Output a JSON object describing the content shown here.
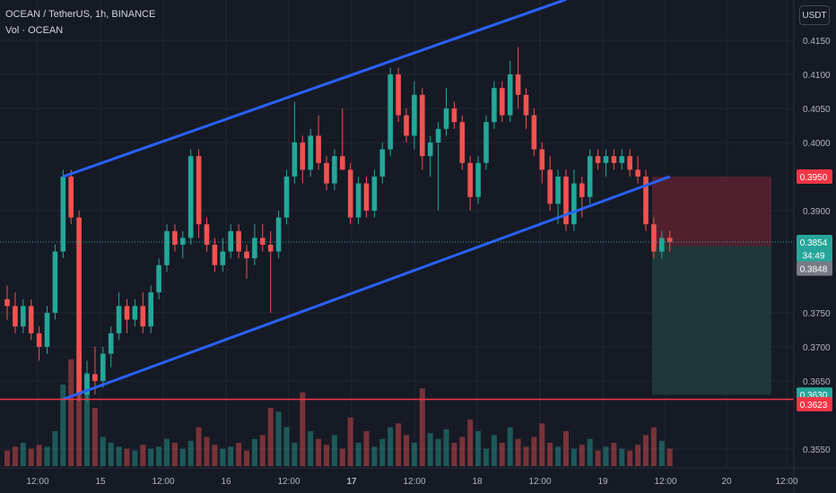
{
  "header": {
    "title": "OCEAN / TetherUS, 1h, BINANCE",
    "volume_label": "Vol · OCEAN"
  },
  "currency_button": "USDT",
  "colors": {
    "background": "#161a25",
    "up": "#26a69a",
    "down": "#ef5350",
    "channel": "#2962ff",
    "support": "#f23645",
    "stop_zone": "#5b2231",
    "target_zone": "#1e3c3b"
  },
  "chart_data": {
    "type": "candlestick",
    "title": "OCEAN / TetherUS, 1h, BINANCE",
    "y_ticks": [
      0.415,
      0.41,
      0.405,
      0.4,
      0.39,
      0.375,
      0.37,
      0.365,
      0.355
    ],
    "x_ticks": [
      "12:00",
      "15",
      "12:00",
      "16",
      "12:00",
      "17",
      "12:00",
      "18",
      "12:00",
      "19",
      "12:00",
      "20",
      "12:00"
    ],
    "price_labels": [
      {
        "value": "0.3950",
        "type": "stop"
      },
      {
        "value": "0.3854",
        "type": "last"
      },
      {
        "value": "34:49",
        "type": "countdown"
      },
      {
        "value": "0.3848",
        "type": "entry"
      },
      {
        "value": "0.3630",
        "type": "target"
      },
      {
        "value": "0.3623",
        "type": "support"
      }
    ],
    "support_level": 0.3623,
    "position": {
      "entry": 0.3848,
      "stop": 0.395,
      "target": 0.363
    },
    "channel": {
      "upper": [
        {
          "t": 7,
          "p": 0.395
        },
        {
          "t": 70,
          "p": 0.421
        }
      ],
      "lower": [
        {
          "t": 7,
          "p": 0.3623
        },
        {
          "t": 83,
          "p": 0.395
        }
      ]
    },
    "candles_ohlc": [
      [
        0.377,
        0.379,
        0.374,
        0.376
      ],
      [
        0.376,
        0.378,
        0.372,
        0.373
      ],
      [
        0.373,
        0.377,
        0.372,
        0.376
      ],
      [
        0.376,
        0.377,
        0.371,
        0.372
      ],
      [
        0.372,
        0.373,
        0.368,
        0.37
      ],
      [
        0.37,
        0.376,
        0.369,
        0.375
      ],
      [
        0.375,
        0.385,
        0.374,
        0.384
      ],
      [
        0.384,
        0.396,
        0.383,
        0.395
      ],
      [
        0.395,
        0.396,
        0.388,
        0.389
      ],
      [
        0.389,
        0.39,
        0.362,
        0.363
      ],
      [
        0.363,
        0.368,
        0.362,
        0.366
      ],
      [
        0.366,
        0.37,
        0.363,
        0.365
      ],
      [
        0.365,
        0.37,
        0.364,
        0.369
      ],
      [
        0.369,
        0.373,
        0.367,
        0.372
      ],
      [
        0.372,
        0.378,
        0.371,
        0.376
      ],
      [
        0.376,
        0.377,
        0.372,
        0.374
      ],
      [
        0.374,
        0.377,
        0.373,
        0.376
      ],
      [
        0.376,
        0.378,
        0.372,
        0.373
      ],
      [
        0.373,
        0.379,
        0.372,
        0.378
      ],
      [
        0.378,
        0.383,
        0.377,
        0.382
      ],
      [
        0.382,
        0.388,
        0.381,
        0.387
      ],
      [
        0.387,
        0.388,
        0.384,
        0.385
      ],
      [
        0.385,
        0.387,
        0.383,
        0.386
      ],
      [
        0.386,
        0.399,
        0.385,
        0.398
      ],
      [
        0.398,
        0.399,
        0.386,
        0.388
      ],
      [
        0.388,
        0.389,
        0.384,
        0.385
      ],
      [
        0.385,
        0.386,
        0.381,
        0.382
      ],
      [
        0.382,
        0.386,
        0.381,
        0.384
      ],
      [
        0.384,
        0.388,
        0.383,
        0.387
      ],
      [
        0.387,
        0.388,
        0.383,
        0.384
      ],
      [
        0.384,
        0.385,
        0.38,
        0.383
      ],
      [
        0.383,
        0.388,
        0.382,
        0.386
      ],
      [
        0.386,
        0.388,
        0.384,
        0.385
      ],
      [
        0.385,
        0.387,
        0.375,
        0.384
      ],
      [
        0.384,
        0.39,
        0.383,
        0.389
      ],
      [
        0.389,
        0.396,
        0.388,
        0.395
      ],
      [
        0.395,
        0.406,
        0.394,
        0.4
      ],
      [
        0.4,
        0.401,
        0.394,
        0.396
      ],
      [
        0.396,
        0.402,
        0.395,
        0.401
      ],
      [
        0.401,
        0.404,
        0.396,
        0.397
      ],
      [
        0.397,
        0.398,
        0.393,
        0.394
      ],
      [
        0.394,
        0.399,
        0.393,
        0.398
      ],
      [
        0.398,
        0.405,
        0.396,
        0.396
      ],
      [
        0.396,
        0.397,
        0.388,
        0.389
      ],
      [
        0.389,
        0.395,
        0.388,
        0.394
      ],
      [
        0.394,
        0.395,
        0.389,
        0.39
      ],
      [
        0.39,
        0.396,
        0.389,
        0.395
      ],
      [
        0.395,
        0.4,
        0.394,
        0.399
      ],
      [
        0.399,
        0.411,
        0.398,
        0.41
      ],
      [
        0.41,
        0.411,
        0.403,
        0.404
      ],
      [
        0.404,
        0.405,
        0.4,
        0.401
      ],
      [
        0.401,
        0.409,
        0.399,
        0.407
      ],
      [
        0.407,
        0.408,
        0.396,
        0.398
      ],
      [
        0.398,
        0.401,
        0.395,
        0.4
      ],
      [
        0.4,
        0.403,
        0.39,
        0.402
      ],
      [
        0.402,
        0.408,
        0.401,
        0.405
      ],
      [
        0.405,
        0.406,
        0.402,
        0.403
      ],
      [
        0.403,
        0.404,
        0.396,
        0.397
      ],
      [
        0.397,
        0.398,
        0.39,
        0.392
      ],
      [
        0.392,
        0.398,
        0.391,
        0.397
      ],
      [
        0.397,
        0.404,
        0.396,
        0.403
      ],
      [
        0.403,
        0.409,
        0.402,
        0.408
      ],
      [
        0.408,
        0.409,
        0.403,
        0.404
      ],
      [
        0.404,
        0.412,
        0.403,
        0.41
      ],
      [
        0.41,
        0.414,
        0.405,
        0.407
      ],
      [
        0.407,
        0.408,
        0.402,
        0.404
      ],
      [
        0.404,
        0.405,
        0.398,
        0.399
      ],
      [
        0.399,
        0.4,
        0.394,
        0.396
      ],
      [
        0.396,
        0.398,
        0.39,
        0.391
      ],
      [
        0.391,
        0.396,
        0.388,
        0.395
      ],
      [
        0.395,
        0.396,
        0.387,
        0.388
      ],
      [
        0.388,
        0.396,
        0.387,
        0.394
      ],
      [
        0.394,
        0.395,
        0.389,
        0.392
      ],
      [
        0.392,
        0.399,
        0.391,
        0.398
      ],
      [
        0.398,
        0.399,
        0.396,
        0.397
      ],
      [
        0.397,
        0.399,
        0.395,
        0.398
      ],
      [
        0.398,
        0.399,
        0.396,
        0.397
      ],
      [
        0.397,
        0.399,
        0.396,
        0.398
      ],
      [
        0.398,
        0.399,
        0.395,
        0.396
      ],
      [
        0.396,
        0.398,
        0.394,
        0.395
      ],
      [
        0.395,
        0.396,
        0.387,
        0.388
      ],
      [
        0.388,
        0.389,
        0.383,
        0.384
      ],
      [
        0.384,
        0.387,
        0.383,
        0.386
      ],
      [
        0.386,
        0.387,
        0.384,
        0.3854
      ]
    ],
    "volumes": [
      8,
      10,
      12,
      9,
      11,
      10,
      18,
      42,
      55,
      60,
      48,
      30,
      15,
      12,
      10,
      9,
      8,
      11,
      9,
      10,
      14,
      12,
      9,
      13,
      20,
      15,
      11,
      9,
      10,
      12,
      8,
      14,
      16,
      30,
      28,
      20,
      12,
      38,
      18,
      14,
      11,
      16,
      9,
      25,
      12,
      18,
      10,
      14,
      20,
      22,
      16,
      12,
      40,
      17,
      14,
      19,
      12,
      15,
      24,
      18,
      9,
      16,
      12,
      20,
      14,
      10,
      15,
      22,
      12,
      10,
      18,
      9,
      11,
      14,
      8,
      10,
      12,
      9,
      8,
      11,
      16,
      20,
      13,
      9
    ]
  }
}
